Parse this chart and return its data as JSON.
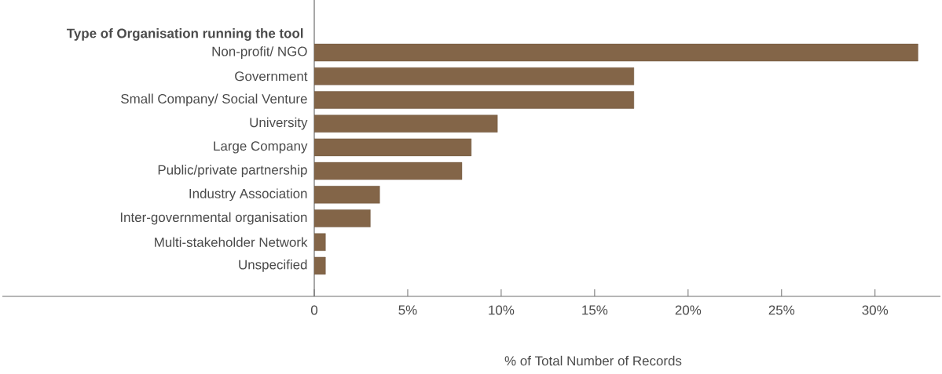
{
  "chart_data": {
    "type": "bar",
    "orientation": "horizontal",
    "ylabel": "Type of Organisation running the tool",
    "xlabel": "% of Total Number of Records",
    "categories": [
      "Non-profit/ NGO",
      "Government",
      "Small Company/ Social Venture",
      "University",
      "Large Company",
      "Public/private partnership",
      "Industry Association",
      "Inter-governmental organisation",
      "Multi-stakeholder Network",
      "Unspecified"
    ],
    "values": [
      32.3,
      17.1,
      17.1,
      9.8,
      8.4,
      7.9,
      3.5,
      3.0,
      0.6,
      0.6
    ],
    "color": "#836548",
    "xlim": [
      0,
      33.5
    ],
    "xticks": [
      0,
      {
        "value": 5,
        "label": "5%"
      },
      {
        "value": 10,
        "label": "10%"
      },
      {
        "value": 15,
        "label": "15%"
      },
      {
        "value": 20,
        "label": "20%"
      },
      {
        "value": 25,
        "label": "25%"
      },
      {
        "value": 30,
        "label": "30%"
      }
    ]
  }
}
